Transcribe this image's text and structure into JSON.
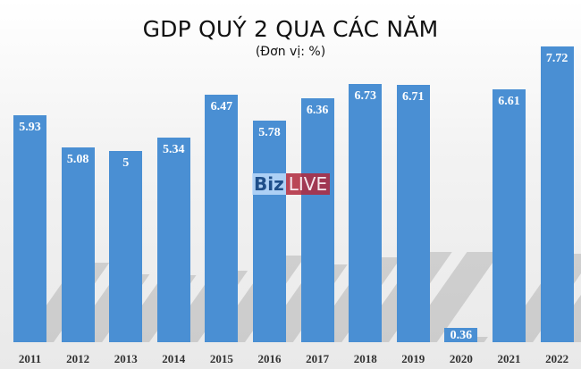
{
  "header": {
    "title": "GDP QUÝ 2 QUA CÁC NĂM",
    "subtitle": "(Đơn vị: %)"
  },
  "watermark": {
    "part1": "Biz",
    "part2": "LIVE"
  },
  "colors": {
    "bar": "#4a8fd3",
    "label": "#ffffff"
  },
  "chart_data": {
    "type": "bar",
    "title": "GDP QUÝ 2 QUA CÁC NĂM",
    "subtitle": "(Đơn vị: %)",
    "xlabel": "",
    "ylabel": "%",
    "categories": [
      "2011",
      "2012",
      "2013",
      "2014",
      "2015",
      "2016",
      "2017",
      "2018",
      "2019",
      "2020",
      "2021",
      "2022"
    ],
    "values": [
      5.93,
      5.08,
      5,
      5.34,
      6.47,
      5.78,
      6.36,
      6.73,
      6.71,
      0.36,
      6.61,
      7.72
    ],
    "value_labels": [
      "5.93",
      "5.08",
      "5",
      "5.34",
      "6.47",
      "5.78",
      "6.36",
      "6.73",
      "6.71",
      "0.36",
      "6.61",
      "7.72"
    ],
    "ylim": [
      0,
      7.72
    ],
    "grid": false,
    "legend": null
  }
}
